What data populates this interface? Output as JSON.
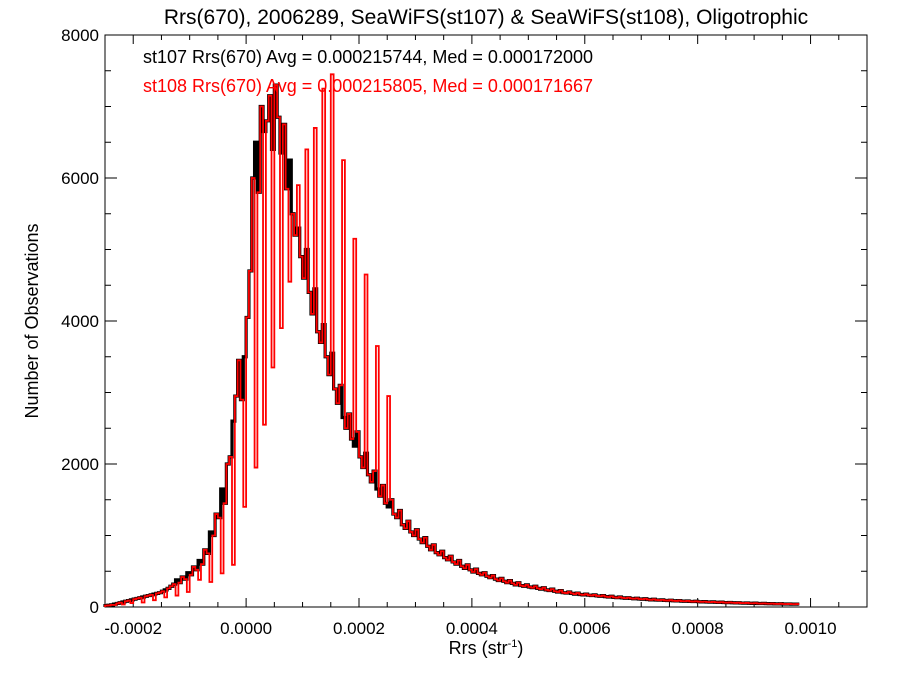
{
  "chart_data": {
    "type": "histogram-step",
    "title": "Rrs(670), 2006289, SeaWiFS(st107) & SeaWiFS(st108), Oligotrophic",
    "xlabel": "Rrs (str",
    "xlabel_sup": "-1",
    "xlabel_close": ")",
    "ylabel": "Number of Observations",
    "xlim": [
      -0.00025,
      0.0011
    ],
    "ylim": [
      0,
      8000
    ],
    "xticks": [
      -0.0002,
      0.0,
      0.0002,
      0.0004,
      0.0006,
      0.0008,
      0.001
    ],
    "xtick_labels": [
      "-0.0002",
      "0.0000",
      "0.0002",
      "0.0004",
      "0.0006",
      "0.0008",
      "0.0010"
    ],
    "yticks": [
      0,
      2000,
      4000,
      6000,
      8000
    ],
    "ytick_labels": [
      "0",
      "2000",
      "4000",
      "6000",
      "8000"
    ],
    "bin_start": -0.00025,
    "bin_width": 5e-06,
    "series": [
      {
        "name": "st107",
        "color": "#000000",
        "annotation": "st107 Rrs(670) Avg = 0.000215744, Med = 0.000172000",
        "values": [
          20,
          25,
          30,
          40,
          50,
          60,
          70,
          80,
          90,
          100,
          110,
          120,
          130,
          140,
          150,
          160,
          170,
          180,
          190,
          200,
          220,
          240,
          260,
          290,
          320,
          380,
          340,
          420,
          390,
          480,
          450,
          560,
          520,
          650,
          600,
          800,
          750,
          1050,
          1000,
          1300,
          1250,
          1650,
          1450,
          2000,
          2100,
          2600,
          2950,
          3450,
          2900,
          3500,
          4050,
          4700,
          6000,
          6500,
          5800,
          7000,
          6650,
          6800,
          7150,
          6400,
          7300,
          6850,
          6350,
          6750,
          5850,
          6250,
          5500,
          5200,
          5300,
          4900,
          4600,
          5000,
          4400,
          4100,
          4450,
          3850,
          3700,
          3950,
          3500,
          3250,
          3550,
          3050,
          2850,
          3100,
          2650,
          2500,
          2700,
          2350,
          2250,
          2450,
          2100,
          1950,
          2150,
          1850,
          1750,
          1900,
          1650,
          1550,
          1700,
          1450,
          1400,
          1500,
          1300,
          1250,
          1350,
          1150,
          1100,
          1200,
          1050,
          1000,
          1080,
          950,
          900,
          970,
          850,
          800,
          870,
          760,
          730,
          780,
          690,
          660,
          710,
          630,
          600,
          650,
          570,
          540,
          590,
          520,
          490,
          530,
          470,
          450,
          480,
          430,
          410,
          440,
          390,
          370,
          400,
          360,
          340,
          370,
          330,
          310,
          340,
          300,
          290,
          310,
          280,
          270,
          290,
          260,
          250,
          270,
          240,
          230,
          250,
          220,
          210,
          230,
          200,
          195,
          210,
          190,
          180,
          195,
          175,
          170,
          180,
          165,
          160,
          170,
          155,
          150,
          160,
          145,
          140,
          150,
          135,
          130,
          140,
          128,
          122,
          130,
          120,
          115,
          122,
          112,
          108,
          115,
          105,
          100,
          108,
          98,
          95,
          100,
          92,
          90,
          95,
          87,
          85,
          90,
          82,
          80,
          85,
          78,
          76,
          80,
          74,
          72,
          75,
          70,
          68,
          72,
          66,
          64,
          68,
          62,
          60,
          64,
          59,
          57,
          60,
          55,
          54,
          57,
          52,
          51,
          54,
          49,
          48,
          51,
          47,
          45,
          48,
          44,
          43,
          46,
          42,
          41,
          43,
          40,
          39,
          41
        ]
      },
      {
        "name": "st108",
        "color": "#ff0000",
        "annotation": "st108 Rrs(670) Avg = 0.000215805, Med = 0.000171667",
        "values": [
          20,
          25,
          30,
          40,
          50,
          60,
          70,
          80,
          90,
          100,
          110,
          120,
          130,
          140,
          150,
          160,
          170,
          180,
          190,
          200,
          220,
          240,
          260,
          290,
          320,
          380,
          340,
          420,
          390,
          480,
          450,
          560,
          520,
          650,
          600,
          800,
          750,
          1050,
          1000,
          1300,
          1250,
          1650,
          1450,
          2000,
          2100,
          2600,
          2950,
          3450,
          2900,
          3500,
          4050,
          4700,
          6000,
          6500,
          5800,
          7000,
          6650,
          6800,
          7150,
          6400,
          7300,
          6850,
          6350,
          6750,
          5850,
          6250,
          5500,
          5200,
          5300,
          4900,
          4600,
          5000,
          4400,
          4100,
          4450,
          3850,
          3700,
          3950,
          3500,
          3250,
          3550,
          3050,
          2850,
          3100,
          2650,
          2500,
          2700,
          2350,
          2250,
          2450,
          2100,
          1950,
          2150,
          1850,
          1750,
          1900,
          1650,
          1550,
          1700,
          1450,
          1400,
          1500,
          1300,
          1250,
          1350,
          1150,
          1100,
          1200,
          1050,
          1000,
          1080,
          950,
          900,
          970,
          850,
          800,
          870,
          760,
          730,
          780,
          690,
          660,
          710,
          630,
          600,
          650,
          570,
          540,
          590,
          520,
          490,
          530,
          470,
          450,
          480,
          430,
          410,
          440,
          390,
          370,
          400,
          360,
          340,
          370,
          330,
          310,
          340,
          300,
          290,
          310,
          280,
          270,
          290,
          260,
          250,
          270,
          240,
          230,
          250,
          220,
          210,
          230,
          200,
          195,
          210,
          190,
          180,
          195,
          175,
          170,
          180,
          165,
          160,
          170,
          155,
          150,
          160,
          145,
          140,
          150,
          135,
          130,
          140,
          128,
          122,
          130,
          120,
          115,
          122,
          112,
          108,
          115,
          105,
          100,
          108,
          98,
          95,
          100,
          92,
          90,
          95,
          87,
          85,
          90,
          82,
          80,
          85,
          78,
          76,
          80,
          74,
          72,
          75,
          70,
          68,
          72,
          66,
          64,
          68,
          62,
          60,
          64,
          59,
          57,
          60,
          55,
          54,
          57,
          52,
          51,
          54,
          49,
          48,
          51,
          47,
          45,
          48,
          44,
          43,
          46,
          42,
          41,
          43,
          40,
          39,
          41
        ],
        "offset_bins": [
          1,
          3,
          6,
          9,
          13,
          17,
          21,
          25,
          29,
          33,
          37,
          41,
          45,
          49,
          53,
          56,
          59,
          62,
          65,
          68,
          71,
          74,
          77,
          80,
          84,
          88,
          92,
          96,
          100
        ],
        "offset_values": [
          22,
          28,
          36,
          55,
          63,
          95,
          135,
          160,
          210,
          380,
          350,
          470,
          590,
          1400,
          1950,
          2550,
          3350,
          3900,
          4550,
          5900,
          6400,
          6700,
          7250,
          7450,
          6250,
          5150,
          4650,
          3650,
          2950
        ]
      }
    ]
  }
}
